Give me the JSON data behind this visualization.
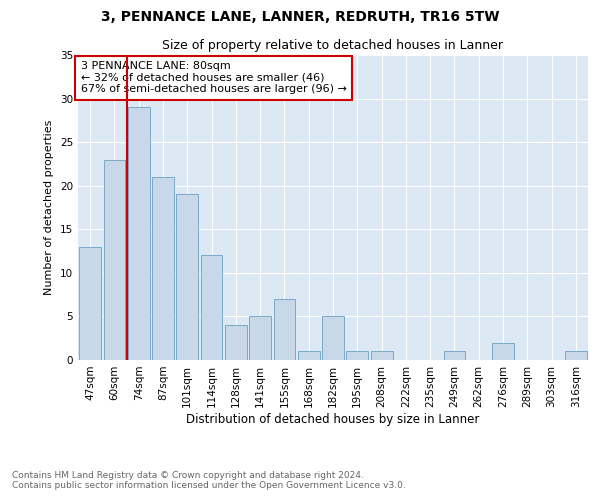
{
  "title": "3, PENNANCE LANE, LANNER, REDRUTH, TR16 5TW",
  "subtitle": "Size of property relative to detached houses in Lanner",
  "xlabel": "Distribution of detached houses by size in Lanner",
  "ylabel": "Number of detached properties",
  "categories": [
    "47sqm",
    "60sqm",
    "74sqm",
    "87sqm",
    "101sqm",
    "114sqm",
    "128sqm",
    "141sqm",
    "155sqm",
    "168sqm",
    "182sqm",
    "195sqm",
    "208sqm",
    "222sqm",
    "235sqm",
    "249sqm",
    "262sqm",
    "276sqm",
    "289sqm",
    "303sqm",
    "316sqm"
  ],
  "values": [
    13,
    23,
    29,
    21,
    19,
    12,
    4,
    5,
    7,
    1,
    5,
    1,
    1,
    0,
    0,
    1,
    0,
    2,
    0,
    0,
    1
  ],
  "bar_color": "#c8d8e8",
  "bar_edge_color": "#7aaac8",
  "vline_x": 1.5,
  "vline_color": "#cc0000",
  "annotation_text": "3 PENNANCE LANE: 80sqm\n← 32% of detached houses are smaller (46)\n67% of semi-detached houses are larger (96) →",
  "annotation_box_color": "#cc0000",
  "ylim": [
    0,
    35
  ],
  "yticks": [
    0,
    5,
    10,
    15,
    20,
    25,
    30,
    35
  ],
  "plot_bg_color": "#dce8f4",
  "footer_text": "Contains HM Land Registry data © Crown copyright and database right 2024.\nContains public sector information licensed under the Open Government Licence v3.0.",
  "title_fontsize": 10,
  "subtitle_fontsize": 9,
  "xlabel_fontsize": 8.5,
  "ylabel_fontsize": 8,
  "tick_fontsize": 7.5,
  "annotation_fontsize": 8,
  "footer_fontsize": 6.5
}
